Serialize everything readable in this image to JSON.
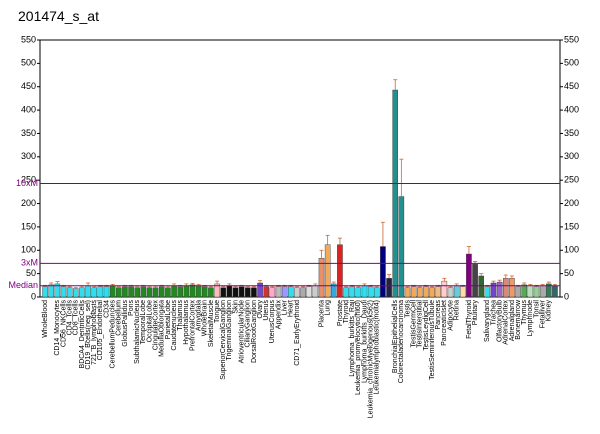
{
  "chart_data": {
    "type": "bar",
    "title": "201474_s_at",
    "categories": [
      "WholeBlood",
      null,
      "CD14_Monocytes",
      "CD56_NKCells",
      "CD4_Tcells",
      "CD8_Tcells",
      "BDCA4_DentriticCells",
      "CD19_Bcells(neg_sel)",
      "721_B_lymphoblasts",
      "CD105_Endothelial",
      "CD34",
      "CerebellumPeduncles",
      "Cerebellum",
      "GlobusPallidus",
      "Pons",
      "SubthalamicNucleus",
      "TemporalLobe",
      "OccipitalLobe",
      "CingulateCortex",
      "MedullaOblongata",
      "ParietalLobe",
      "Caudatenucleus",
      "Thalamus",
      "Hypothalamus",
      "PrefrontalCortex",
      "Amygdala",
      "WholeBrain",
      "SkeletalMuscle",
      "Tongue",
      "SuperiorCervicalGanglion",
      "TrigeminalGanglion",
      "Skin",
      "AtrioventricularNode",
      "CiliaryGanglion",
      "DorsalRootGanglion",
      "Ovary",
      "Uterus",
      "UterusCorpus",
      "Appendix",
      "Liver",
      "Heart",
      "CD71_EarlyErythroid",
      null,
      null,
      null,
      "Placenta",
      "Lung",
      null,
      "Prostate",
      "Thyroid",
      "Lymphoma_burkitts_Raji",
      "Leukemia_promyelocytic(hl60)",
      "Lymphoma_burkitts_Daudi",
      "Leukemia_chronicMyelogenous(k562)",
      "Leukemialymphoblastic(molt4)",
      null,
      null,
      "BronchialEpithelialCells",
      "Colorectaladenocarcinoma",
      "Testis",
      "TestisGermCell",
      "TestisInterstitial",
      "TestisLeydigCell",
      "TestisSeminiferousTubule",
      "Pancreas",
      "PancreaticIslet",
      "Adipocyte",
      "Retina",
      null,
      "FetalThyroid",
      "Pituitary",
      null,
      "Salivarygland",
      "Trachea",
      "OlfactoryBulb",
      "AdrenalCortex",
      "Adrenalgland",
      "Bonemarrow",
      "Thymus",
      "Lymphnode",
      "Tonsil",
      "Fetalliver",
      "Kidney",
      null
    ],
    "values": [
      22,
      26,
      28,
      22,
      20,
      18,
      20,
      24,
      20,
      22,
      22,
      24,
      20,
      22,
      22,
      20,
      22,
      20,
      20,
      22,
      20,
      24,
      22,
      24,
      26,
      24,
      22,
      20,
      28,
      20,
      24,
      20,
      22,
      20,
      20,
      30,
      22,
      20,
      22,
      22,
      22,
      20,
      20,
      22,
      24,
      83,
      112,
      28,
      112,
      20,
      22,
      20,
      24,
      22,
      20,
      108,
      40,
      443,
      215,
      20,
      22,
      20,
      22,
      20,
      22,
      34,
      20,
      24,
      22,
      92,
      70,
      45,
      22,
      30,
      32,
      40,
      40,
      22,
      26,
      24,
      22,
      24,
      28,
      24
    ],
    "errors": [
      3,
      4,
      5,
      3,
      2,
      2,
      3,
      6,
      2,
      3,
      3,
      3,
      2,
      3,
      3,
      2,
      3,
      2,
      3,
      3,
      3,
      4,
      3,
      4,
      3,
      3,
      3,
      2,
      6,
      2,
      4,
      2,
      3,
      2,
      2,
      5,
      3,
      2,
      3,
      3,
      3,
      2,
      2,
      3,
      4,
      17,
      20,
      4,
      14,
      2,
      3,
      2,
      4,
      3,
      2,
      52,
      8,
      22,
      80,
      2,
      3,
      2,
      3,
      2,
      3,
      6,
      2,
      4,
      3,
      16,
      6,
      5,
      3,
      4,
      4,
      7,
      5,
      3,
      4,
      3,
      3,
      3,
      4,
      3
    ],
    "colors": [
      "#33ddee",
      "#33ddee",
      "#33ddee",
      "#33ddee",
      "#33ddee",
      "#33ddee",
      "#33ddee",
      "#33ddee",
      "#33ddee",
      "#33ddee",
      "#33ddee",
      "#228822",
      "#228822",
      "#228822",
      "#228822",
      "#228822",
      "#228822",
      "#228822",
      "#228822",
      "#228822",
      "#228822",
      "#228822",
      "#228822",
      "#228822",
      "#228822",
      "#228822",
      "#228822",
      "#228822",
      "#ffbbbb",
      "#111111",
      "#111111",
      "#111111",
      "#111111",
      "#111111",
      "#111111",
      "#7744cc",
      "#cc3333",
      "#ffaacc",
      "#bbbbbb",
      "#9999ff",
      "#33ddee",
      "#cccccc",
      "#aaaaaa",
      "#dddddd",
      "#cccccc",
      "#e8906a",
      "#f4a95a",
      "#33aadd",
      "#dd2222",
      "#33ddee",
      "#33ddee",
      "#33ddee",
      "#33ddee",
      "#33ddee",
      "#33ddee",
      "#000080",
      "#222244",
      "#22908e",
      "#22908e",
      "#f4a95a",
      "#f4a95a",
      "#f4a95a",
      "#f4a95a",
      "#f4a95a",
      "#eebb88",
      "#ffcccc",
      "#cccccc",
      "#66ccdd",
      "#ffddaa",
      "#800080",
      "#444444",
      "#336633",
      "#33ddee",
      "#7744cc",
      "#9966cc",
      "#dd8877",
      "#ee9966",
      "#aaaaaa",
      "#55aa55",
      "#bbddbb",
      "#99cc99",
      "#aaaaaa",
      "#3a7a5a",
      "#336666"
    ],
    "ylim": [
      0,
      550
    ],
    "yticks": [
      0,
      50,
      100,
      150,
      200,
      250,
      300,
      350,
      400,
      450,
      500,
      550
    ],
    "reference_lines": [
      {
        "label": "Median",
        "value": 24
      },
      {
        "label": "3xM",
        "value": 72
      },
      {
        "label": "10xM",
        "value": 243
      }
    ]
  }
}
